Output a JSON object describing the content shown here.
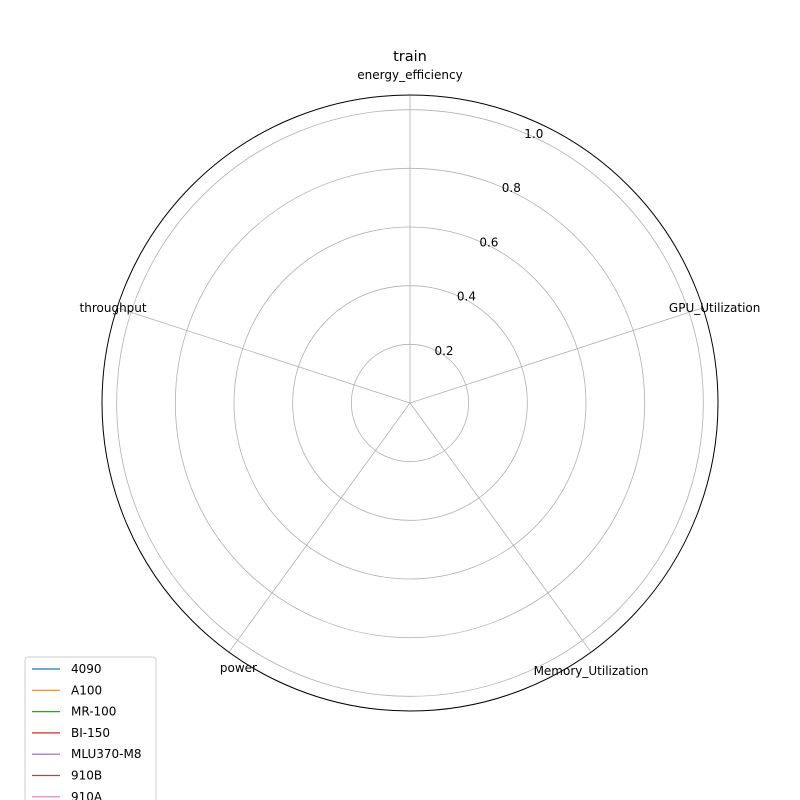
{
  "chart_data": {
    "type": "radar",
    "title": "train",
    "axes": [
      "energy_efficiency",
      "GPU_Utilization",
      "Memory_Utilization",
      "power",
      "throughput"
    ],
    "rlim": [
      0,
      1.05
    ],
    "rticks": [
      0.2,
      0.4,
      0.6,
      0.8,
      1.0
    ],
    "rtick_labels": [
      "0.2",
      "0.4",
      "0.6",
      "0.8",
      "1.0"
    ],
    "grid": true,
    "legend_position": "lower-left",
    "series": [
      {
        "name": "4090",
        "color": "#1f77b4",
        "values": [
          0,
          0,
          0,
          0,
          0
        ]
      },
      {
        "name": "A100",
        "color": "#ff7f0e",
        "values": [
          0,
          0,
          0,
          0,
          0
        ]
      },
      {
        "name": "MR-100",
        "color": "#2ca02c",
        "values": [
          0,
          0,
          0,
          0,
          0
        ]
      },
      {
        "name": "BI-150",
        "color": "#d62728",
        "values": [
          0,
          0,
          0,
          0,
          0
        ]
      },
      {
        "name": "MLU370-M8",
        "color": "#9467bd",
        "values": [
          0,
          0,
          0,
          0,
          0
        ]
      },
      {
        "name": "910B",
        "color": "#8c564b",
        "values": [
          0,
          0,
          0,
          0,
          0
        ]
      },
      {
        "name": "910A",
        "color": "#e377c2",
        "values": [
          0,
          0,
          0,
          0,
          0
        ]
      }
    ]
  }
}
